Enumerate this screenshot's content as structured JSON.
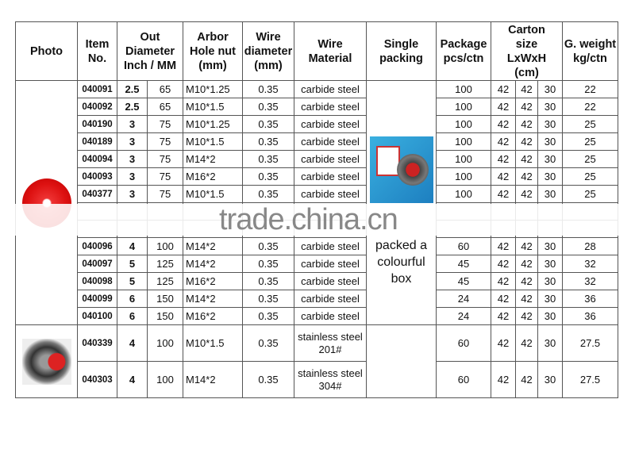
{
  "headers": {
    "photo": "Photo",
    "item": "Item No.",
    "diameter": "Out Diameter Inch / MM",
    "arbor": "Arbor Hole nut (mm)",
    "wire_dia": "Wire diameter (mm)",
    "material": "Wire Material",
    "single": "Single packing",
    "package": "Package pcs/ctn",
    "carton": "Carton size LxWxH (cm)",
    "weight": "G. weight kg/ctn"
  },
  "single_packing_text": "packed a colourful box",
  "watermark": "trade.china.cn",
  "rows": [
    {
      "item": "040091",
      "inch": "2.5",
      "mm": "65",
      "arbor": "M10*1.25",
      "wire": "0.35",
      "material": "carbide steel",
      "pcs": "100",
      "l": "42",
      "w": "42",
      "h": "30",
      "kg": "22"
    },
    {
      "item": "040092",
      "inch": "2.5",
      "mm": "65",
      "arbor": "M10*1.5",
      "wire": "0.35",
      "material": "carbide steel",
      "pcs": "100",
      "l": "42",
      "w": "42",
      "h": "30",
      "kg": "22"
    },
    {
      "item": "040190",
      "inch": "3",
      "mm": "75",
      "arbor": "M10*1.25",
      "wire": "0.35",
      "material": "carbide steel",
      "pcs": "100",
      "l": "42",
      "w": "42",
      "h": "30",
      "kg": "25"
    },
    {
      "item": "040189",
      "inch": "3",
      "mm": "75",
      "arbor": "M10*1.5",
      "wire": "0.35",
      "material": "carbide steel",
      "pcs": "100",
      "l": "42",
      "w": "42",
      "h": "30",
      "kg": "25"
    },
    {
      "item": "040094",
      "inch": "3",
      "mm": "75",
      "arbor": "M14*2",
      "wire": "0.35",
      "material": "carbide steel",
      "pcs": "100",
      "l": "42",
      "w": "42",
      "h": "30",
      "kg": "25"
    },
    {
      "item": "040093",
      "inch": "3",
      "mm": "75",
      "arbor": "M16*2",
      "wire": "0.35",
      "material": "carbide steel",
      "pcs": "100",
      "l": "42",
      "w": "42",
      "h": "30",
      "kg": "25"
    },
    {
      "item": "040377",
      "inch": "3",
      "mm": "75",
      "arbor": "M10*1.5",
      "wire": "0.35",
      "material": "carbide steel",
      "pcs": "100",
      "l": "42",
      "w": "42",
      "h": "30",
      "kg": "25"
    },
    {},
    {},
    {
      "item": "040096",
      "inch": "4",
      "mm": "100",
      "arbor": "M14*2",
      "wire": "0.35",
      "material": "carbide steel",
      "pcs": "60",
      "l": "42",
      "w": "42",
      "h": "30",
      "kg": "28"
    },
    {
      "item": "040097",
      "inch": "5",
      "mm": "125",
      "arbor": "M14*2",
      "wire": "0.35",
      "material": "carbide steel",
      "pcs": "45",
      "l": "42",
      "w": "42",
      "h": "30",
      "kg": "32"
    },
    {
      "item": "040098",
      "inch": "5",
      "mm": "125",
      "arbor": "M16*2",
      "wire": "0.35",
      "material": "carbide steel",
      "pcs": "45",
      "l": "42",
      "w": "42",
      "h": "30",
      "kg": "32"
    },
    {
      "item": "040099",
      "inch": "6",
      "mm": "150",
      "arbor": "M14*2",
      "wire": "0.35",
      "material": "carbide steel",
      "pcs": "24",
      "l": "42",
      "w": "42",
      "h": "30",
      "kg": "36"
    },
    {
      "item": "040100",
      "inch": "6",
      "mm": "150",
      "arbor": "M16*2",
      "wire": "0.35",
      "material": "carbide steel",
      "pcs": "24",
      "l": "42",
      "w": "42",
      "h": "30",
      "kg": "36"
    },
    {
      "item": "040339",
      "inch": "4",
      "mm": "100",
      "arbor": "M10*1.5",
      "wire": "0.35",
      "material": "stainless steel 201#",
      "pcs": "60",
      "l": "42",
      "w": "42",
      "h": "30",
      "kg": "27.5"
    },
    {
      "item": "040303",
      "inch": "4",
      "mm": "100",
      "arbor": "M14*2",
      "wire": "0.35",
      "material": "stainless steel 304#",
      "pcs": "60",
      "l": "42",
      "w": "42",
      "h": "30",
      "kg": "27.5"
    }
  ]
}
